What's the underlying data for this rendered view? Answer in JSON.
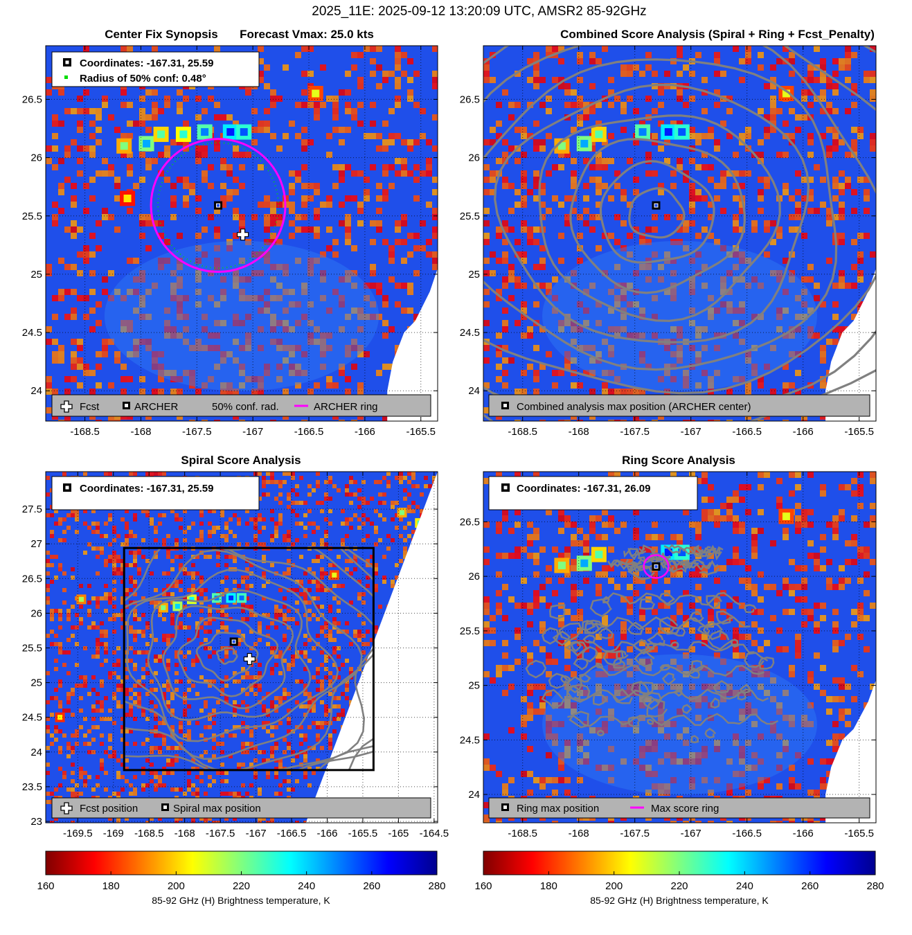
{
  "figure": {
    "suptitle": "2025_11E: 2025-09-12 13:20:09 UTC, AMSR2 85-92GHz"
  },
  "colors": {
    "ring_magenta": "#ff00ff",
    "conf_green": "#00dd00",
    "contour_gray": "#808080",
    "legend_bg": "#b3b3b3"
  },
  "chart_data": [
    {
      "type": "heatmap",
      "panel": "center-fix-synopsis",
      "title_left": "Center Fix Synopsis",
      "title_right": "Forecast Vmax: 25.0 kts",
      "xlim": [
        -168.85,
        -165.35
      ],
      "ylim": [
        23.74,
        26.96
      ],
      "xticks": [
        -168.5,
        -168,
        -167.5,
        -167,
        -166.5,
        -166,
        -165.5
      ],
      "yticks": [
        24,
        24.5,
        25,
        25.5,
        26,
        26.5
      ],
      "xtick_labels": [
        "-168.5",
        "-168",
        "-167.5",
        "-167",
        "-166.5",
        "-166",
        "-165.5"
      ],
      "ytick_labels": [
        "24",
        "24.5",
        "25",
        "25.5",
        "26",
        "26.5"
      ],
      "info_lines": [
        "Coordinates: -167.31, 25.59",
        "Radius of 50% conf: 0.48°"
      ],
      "archer_center": [
        -167.31,
        25.59
      ],
      "fcst_position": [
        -167.09,
        25.34
      ],
      "archer_ring_radius_deg": 0.6,
      "conf_radius_deg": 0.48,
      "legend": [
        "Fcst",
        "ARCHER",
        "50% conf. rad.",
        "ARCHER ring"
      ],
      "cold_cells": [
        {
          "lon": -168.15,
          "lat": 26.1,
          "tb": 220
        },
        {
          "lon": -167.95,
          "lat": 26.12,
          "tb": 195
        },
        {
          "lon": -167.82,
          "lat": 26.2,
          "tb": 215
        },
        {
          "lon": -167.62,
          "lat": 26.2,
          "tb": 210
        },
        {
          "lon": -167.43,
          "lat": 26.22,
          "tb": 190
        },
        {
          "lon": -167.2,
          "lat": 26.22,
          "tb": 178
        },
        {
          "lon": -167.08,
          "lat": 26.22,
          "tb": 185
        },
        {
          "lon": -166.44,
          "lat": 26.55,
          "tb": 232
        },
        {
          "lon": -168.12,
          "lat": 25.65,
          "tb": 238
        }
      ]
    },
    {
      "type": "heatmap",
      "panel": "combined-score-analysis",
      "title": "Combined Score Analysis (Spiral + Ring + Fcst_Penalty)",
      "xlim": [
        -168.85,
        -165.35
      ],
      "ylim": [
        23.74,
        26.96
      ],
      "xticks": [
        -168.5,
        -168,
        -167.5,
        -167,
        -166.5,
        -166,
        -165.5
      ],
      "yticks": [
        24,
        24.5,
        25,
        25.5,
        26,
        26.5
      ],
      "xtick_labels": [
        "-168.5",
        "-168",
        "-167.5",
        "-167",
        "-166.5",
        "-166",
        "-165.5"
      ],
      "ytick_labels": [
        "24",
        "24.5",
        "25",
        "25.5",
        "26",
        "26.5"
      ],
      "max_position": [
        -167.31,
        25.59
      ],
      "contour_radii_deg": [
        0.22,
        0.45,
        0.68,
        0.92,
        1.16,
        1.4,
        1.64,
        1.88,
        2.12
      ],
      "legend": [
        "Combined analysis max position (ARCHER center)"
      ],
      "cold_cells": [
        {
          "lon": -168.15,
          "lat": 26.1,
          "tb": 220
        },
        {
          "lon": -167.95,
          "lat": 26.12,
          "tb": 195
        },
        {
          "lon": -167.82,
          "lat": 26.2,
          "tb": 215
        },
        {
          "lon": -167.43,
          "lat": 26.22,
          "tb": 190
        },
        {
          "lon": -167.2,
          "lat": 26.22,
          "tb": 178
        },
        {
          "lon": -167.08,
          "lat": 26.22,
          "tb": 185
        },
        {
          "lon": -166.15,
          "lat": 26.55,
          "tb": 232
        }
      ]
    },
    {
      "type": "heatmap",
      "panel": "spiral-score-analysis",
      "title": "Spiral Score Analysis",
      "xlim": [
        -169.95,
        -164.45
      ],
      "ylim": [
        22.98,
        28.04
      ],
      "xticks": [
        -169.5,
        -169,
        -168.5,
        -168,
        -167.5,
        -167,
        -166.5,
        -166,
        -165.5,
        -165,
        -164.5
      ],
      "yticks": [
        23,
        23.5,
        24,
        24.5,
        25,
        25.5,
        26,
        26.5,
        27,
        27.5
      ],
      "xtick_labels": [
        "-169.5",
        "-169",
        "-168.5",
        "-168",
        "-167.5",
        "-167",
        "-166.5",
        "-166",
        "-165.5",
        "-165",
        "-164.5"
      ],
      "ytick_labels": [
        "23",
        "23.5",
        "24",
        "24.5",
        "25",
        "25.5",
        "26",
        "26.5",
        "27",
        "27.5"
      ],
      "info_lines": [
        "Coordinates: -167.31, 25.59"
      ],
      "spiral_max": [
        -167.31,
        25.59
      ],
      "fcst_position": [
        -167.09,
        25.34
      ],
      "search_box": {
        "lon": [
          -168.85,
          -165.35
        ],
        "lat": [
          23.74,
          26.94
        ]
      },
      "legend": [
        "Fcst position",
        "Spiral max position"
      ],
      "cold_cells": [
        {
          "lon": -168.3,
          "lat": 26.08,
          "tb": 220
        },
        {
          "lon": -168.1,
          "lat": 26.1,
          "tb": 200
        },
        {
          "lon": -167.9,
          "lat": 26.2,
          "tb": 205
        },
        {
          "lon": -167.55,
          "lat": 26.22,
          "tb": 190
        },
        {
          "lon": -167.35,
          "lat": 26.22,
          "tb": 180
        },
        {
          "lon": -167.2,
          "lat": 26.22,
          "tb": 188
        },
        {
          "lon": -165.9,
          "lat": 26.55,
          "tb": 232
        },
        {
          "lon": -169.45,
          "lat": 26.2,
          "tb": 225
        },
        {
          "lon": -164.7,
          "lat": 27.3,
          "tb": 212
        },
        {
          "lon": -164.95,
          "lat": 27.45,
          "tb": 220
        },
        {
          "lon": -169.75,
          "lat": 24.5,
          "tb": 235
        }
      ]
    },
    {
      "type": "heatmap",
      "panel": "ring-score-analysis",
      "title": "Ring Score Analysis",
      "xlim": [
        -168.85,
        -165.35
      ],
      "ylim": [
        23.74,
        26.96
      ],
      "xticks": [
        -168.5,
        -168,
        -167.5,
        -167,
        -166.5,
        -166,
        -165.5
      ],
      "yticks": [
        24,
        24.5,
        25,
        25.5,
        26,
        26.5
      ],
      "xtick_labels": [
        "-168.5",
        "-168",
        "-167.5",
        "-167",
        "-166.5",
        "-166",
        "-165.5"
      ],
      "ytick_labels": [
        "24",
        "24.5",
        "25",
        "25.5",
        "26",
        "26.5"
      ],
      "info_lines": [
        "Coordinates: -167.31, 26.09"
      ],
      "ring_max": [
        -167.31,
        26.09
      ],
      "max_ring_radius_deg": 0.11,
      "legend": [
        "Ring max position",
        "Max score ring"
      ],
      "cold_cells": [
        {
          "lon": -168.15,
          "lat": 26.1,
          "tb": 220
        },
        {
          "lon": -167.95,
          "lat": 26.12,
          "tb": 195
        },
        {
          "lon": -167.82,
          "lat": 26.2,
          "tb": 215
        },
        {
          "lon": -167.2,
          "lat": 26.22,
          "tb": 178
        },
        {
          "lon": -167.08,
          "lat": 26.22,
          "tb": 185
        },
        {
          "lon": -166.15,
          "lat": 26.55,
          "tb": 232
        }
      ]
    }
  ],
  "colorbar": {
    "range": [
      160,
      280
    ],
    "ticks": [
      160,
      180,
      200,
      220,
      240,
      260,
      280
    ],
    "tick_labels": [
      "160",
      "180",
      "200",
      "220",
      "240",
      "260",
      "280"
    ],
    "label": "85-92 GHz (H) Brightness temperature, K"
  }
}
